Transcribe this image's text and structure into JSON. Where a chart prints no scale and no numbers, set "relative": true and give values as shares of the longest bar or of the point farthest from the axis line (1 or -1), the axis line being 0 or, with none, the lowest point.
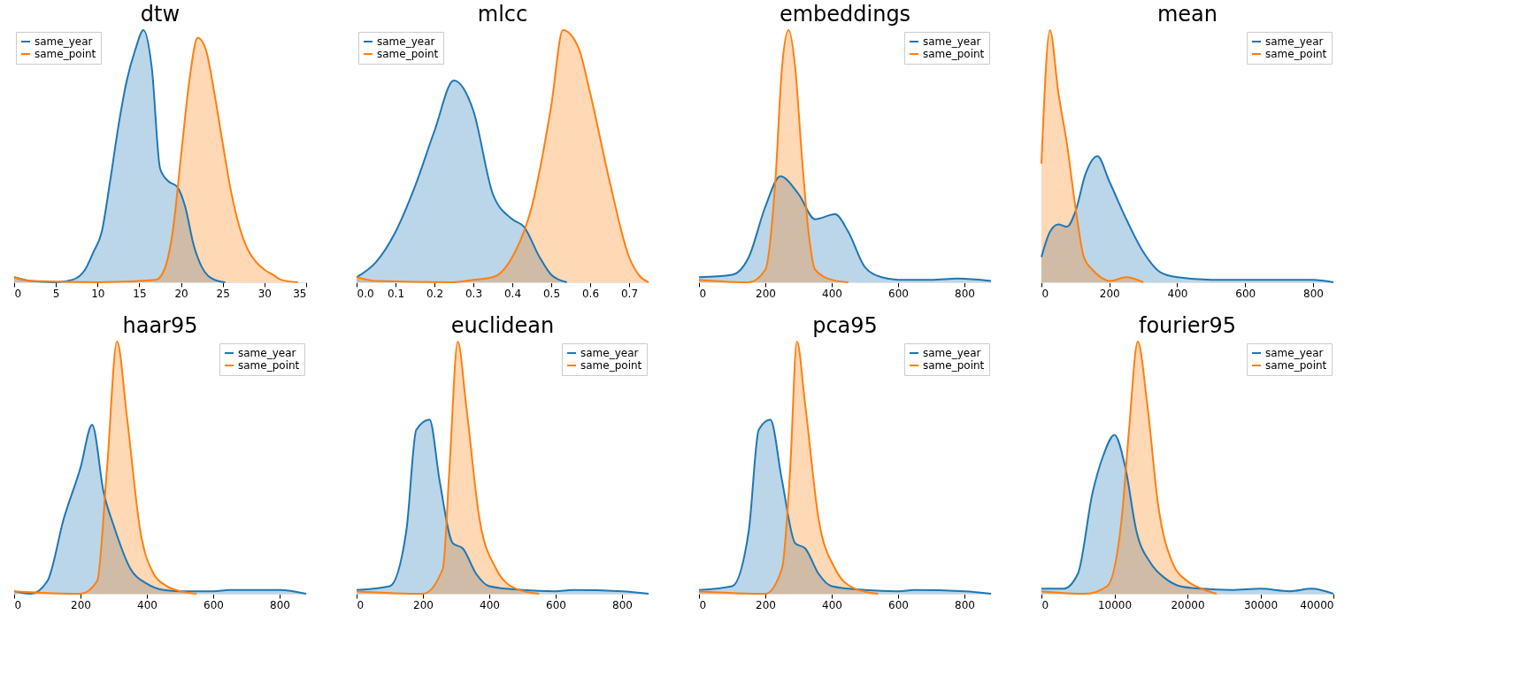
{
  "chart_data": [
    {
      "type": "area",
      "title": "dtw",
      "relative": true,
      "legend": "top left",
      "xlim": [
        0,
        35
      ],
      "xticks": [
        0,
        5,
        10,
        15,
        20,
        25,
        30,
        35
      ],
      "grid": false,
      "series": [
        {
          "name": "same_year",
          "color": "#1f77b4",
          "x": [
            0,
            2,
            5,
            7,
            8.5,
            9.5,
            10.5,
            11.5,
            12.5,
            13.5,
            14.5,
            15.5,
            16.5,
            17.5,
            18.5,
            19.5,
            20.5,
            21.5,
            22.5,
            24,
            25.3
          ],
          "values": [
            0.02,
            0.005,
            0,
            0.01,
            0.05,
            0.12,
            0.2,
            0.4,
            0.62,
            0.8,
            0.92,
            1.0,
            0.85,
            0.45,
            0.4,
            0.38,
            0.3,
            0.15,
            0.06,
            0.01,
            0
          ]
        },
        {
          "name": "same_point",
          "color": "#ff7f0e",
          "x": [
            0,
            2,
            10,
            17,
            18,
            19,
            20,
            21,
            22,
            23,
            24,
            25,
            26,
            27,
            28,
            29,
            30,
            31,
            32,
            34
          ],
          "values": [
            0.02,
            0.005,
            0,
            0.01,
            0.05,
            0.2,
            0.5,
            0.8,
            0.97,
            0.92,
            0.75,
            0.55,
            0.36,
            0.22,
            0.13,
            0.08,
            0.05,
            0.03,
            0.01,
            0
          ]
        }
      ]
    },
    {
      "type": "area",
      "title": "mlcc",
      "relative": true,
      "legend": "top left",
      "xlim": [
        0,
        0.75
      ],
      "xticks": [
        {
          "value": 0,
          "label": "0.0"
        },
        0.1,
        0.2,
        0.3,
        0.4,
        0.5,
        0.6,
        0.7
      ],
      "grid": false,
      "series": [
        {
          "name": "same_year",
          "color": "#1f77b4",
          "x": [
            0,
            0.05,
            0.1,
            0.15,
            0.2,
            0.25,
            0.3,
            0.35,
            0.4,
            0.43,
            0.47,
            0.5,
            0.54
          ],
          "values": [
            0.02,
            0.08,
            0.2,
            0.38,
            0.6,
            0.8,
            0.68,
            0.35,
            0.25,
            0.22,
            0.1,
            0.03,
            0
          ]
        },
        {
          "name": "same_point",
          "color": "#ff7f0e",
          "x": [
            0,
            0.05,
            0.25,
            0.3,
            0.35,
            0.4,
            0.45,
            0.5,
            0.53,
            0.57,
            0.6,
            0.65,
            0.7,
            0.73,
            0.75
          ],
          "values": [
            0.02,
            0.005,
            0,
            0.01,
            0.02,
            0.1,
            0.3,
            0.7,
            1.0,
            0.93,
            0.75,
            0.4,
            0.1,
            0.02,
            0
          ]
        }
      ]
    },
    {
      "type": "area",
      "title": "embeddings",
      "relative": true,
      "legend": "top right",
      "xlim": [
        0,
        880
      ],
      "xticks": [
        0,
        200,
        400,
        600,
        800
      ],
      "grid": false,
      "series": [
        {
          "name": "same_year",
          "color": "#1f77b4",
          "x": [
            0,
            100,
            150,
            200,
            245,
            300,
            350,
            410,
            450,
            500,
            550,
            600,
            700,
            780,
            880
          ],
          "values": [
            0.02,
            0.03,
            0.1,
            0.3,
            0.42,
            0.35,
            0.25,
            0.27,
            0.2,
            0.06,
            0.02,
            0.01,
            0.01,
            0.015,
            0.005
          ]
        },
        {
          "name": "same_point",
          "color": "#ff7f0e",
          "x": [
            0,
            150,
            200,
            230,
            250,
            270,
            290,
            310,
            330,
            350,
            400,
            450
          ],
          "values": [
            0.01,
            0,
            0.05,
            0.4,
            0.85,
            1.0,
            0.85,
            0.5,
            0.2,
            0.05,
            0.01,
            0
          ]
        }
      ]
    },
    {
      "type": "area",
      "title": "mean",
      "relative": true,
      "legend": "top right",
      "xlim": [
        0,
        860
      ],
      "xticks": [
        0,
        200,
        400,
        600,
        800
      ],
      "grid": false,
      "series": [
        {
          "name": "same_year",
          "color": "#1f77b4",
          "x": [
            0,
            25,
            50,
            75,
            100,
            130,
            165,
            200,
            250,
            300,
            350,
            400,
            500,
            600,
            800,
            860
          ],
          "values": [
            0.1,
            0.2,
            0.23,
            0.22,
            0.28,
            0.43,
            0.5,
            0.4,
            0.25,
            0.12,
            0.04,
            0.02,
            0.01,
            0.01,
            0.01,
            0
          ]
        },
        {
          "name": "same_point",
          "color": "#ff7f0e",
          "x": [
            0,
            25,
            50,
            75,
            100,
            125,
            150,
            175,
            200,
            250,
            300
          ],
          "values": [
            0.47,
            1.0,
            0.75,
            0.55,
            0.3,
            0.1,
            0.05,
            0.02,
            0.005,
            0.02,
            0
          ]
        }
      ]
    },
    {
      "type": "area",
      "title": "haar95",
      "relative": true,
      "legend": "top right",
      "xlim": [
        0,
        880
      ],
      "xticks": [
        0,
        200,
        400,
        600,
        800
      ],
      "grid": false,
      "series": [
        {
          "name": "same_year",
          "color": "#1f77b4",
          "x": [
            0,
            50,
            100,
            150,
            200,
            235,
            270,
            300,
            350,
            400,
            450,
            500,
            600,
            650,
            800,
            880
          ],
          "values": [
            0.01,
            0,
            0.05,
            0.3,
            0.5,
            0.67,
            0.4,
            0.27,
            0.1,
            0.04,
            0.015,
            0.01,
            0.01,
            0.015,
            0.015,
            0
          ]
        },
        {
          "name": "same_point",
          "color": "#ff7f0e",
          "x": [
            0,
            200,
            250,
            280,
            310,
            340,
            380,
            420,
            460,
            500,
            550
          ],
          "values": [
            0.01,
            0,
            0.05,
            0.5,
            1.0,
            0.7,
            0.25,
            0.08,
            0.03,
            0.01,
            0
          ]
        }
      ]
    },
    {
      "type": "area",
      "title": "euclidean",
      "relative": true,
      "legend": "top right",
      "xlim": [
        0,
        880
      ],
      "xticks": [
        0,
        200,
        400,
        600,
        800
      ],
      "grid": false,
      "series": [
        {
          "name": "same_year",
          "color": "#1f77b4",
          "x": [
            0,
            100,
            150,
            180,
            220,
            250,
            290,
            320,
            360,
            400,
            500,
            600,
            650,
            800,
            880
          ],
          "values": [
            0.015,
            0.03,
            0.25,
            0.65,
            0.69,
            0.45,
            0.2,
            0.18,
            0.08,
            0.03,
            0.015,
            0.01,
            0.015,
            0.01,
            0
          ]
        },
        {
          "name": "same_point",
          "color": "#ff7f0e",
          "x": [
            0,
            200,
            260,
            280,
            305,
            330,
            370,
            420,
            480,
            550
          ],
          "values": [
            0.01,
            0,
            0.1,
            0.5,
            1.0,
            0.75,
            0.3,
            0.1,
            0.02,
            0
          ]
        }
      ]
    },
    {
      "type": "area",
      "title": "pca95",
      "relative": true,
      "legend": "top right",
      "xlim": [
        0,
        880
      ],
      "xticks": [
        0,
        200,
        400,
        600,
        800
      ],
      "grid": false,
      "series": [
        {
          "name": "same_year",
          "color": "#1f77b4",
          "x": [
            0,
            100,
            150,
            180,
            215,
            250,
            290,
            320,
            360,
            400,
            500,
            600,
            650,
            800,
            880
          ],
          "values": [
            0.015,
            0.03,
            0.25,
            0.65,
            0.69,
            0.45,
            0.2,
            0.18,
            0.08,
            0.03,
            0.015,
            0.01,
            0.015,
            0.01,
            0
          ]
        },
        {
          "name": "same_point",
          "color": "#ff7f0e",
          "x": [
            0,
            200,
            250,
            275,
            295,
            320,
            360,
            410,
            470,
            540
          ],
          "values": [
            0.01,
            0,
            0.1,
            0.5,
            1.0,
            0.75,
            0.3,
            0.1,
            0.02,
            0
          ]
        }
      ]
    },
    {
      "type": "area",
      "title": "fourier95",
      "relative": true,
      "legend": "top right",
      "xlim": [
        0,
        40000
      ],
      "xticks": [
        0,
        10000,
        20000,
        30000,
        40000
      ],
      "grid": false,
      "series": [
        {
          "name": "same_year",
          "color": "#1f77b4",
          "x": [
            0,
            3000,
            5000,
            7000,
            8500,
            10000,
            11500,
            13000,
            15000,
            17000,
            19000,
            22000,
            26000,
            30000,
            34000,
            37000,
            40000
          ],
          "values": [
            0.02,
            0.02,
            0.08,
            0.4,
            0.55,
            0.63,
            0.5,
            0.25,
            0.12,
            0.06,
            0.03,
            0.02,
            0.015,
            0.02,
            0.01,
            0.02,
            0
          ]
        },
        {
          "name": "same_point",
          "color": "#ff7f0e",
          "x": [
            0,
            6000,
            9000,
            11000,
            12000,
            13200,
            14500,
            16000,
            18000,
            20000,
            22000,
            24000
          ],
          "values": [
            0.01,
            0,
            0.03,
            0.3,
            0.65,
            1.0,
            0.75,
            0.35,
            0.12,
            0.05,
            0.02,
            0
          ]
        }
      ]
    }
  ]
}
